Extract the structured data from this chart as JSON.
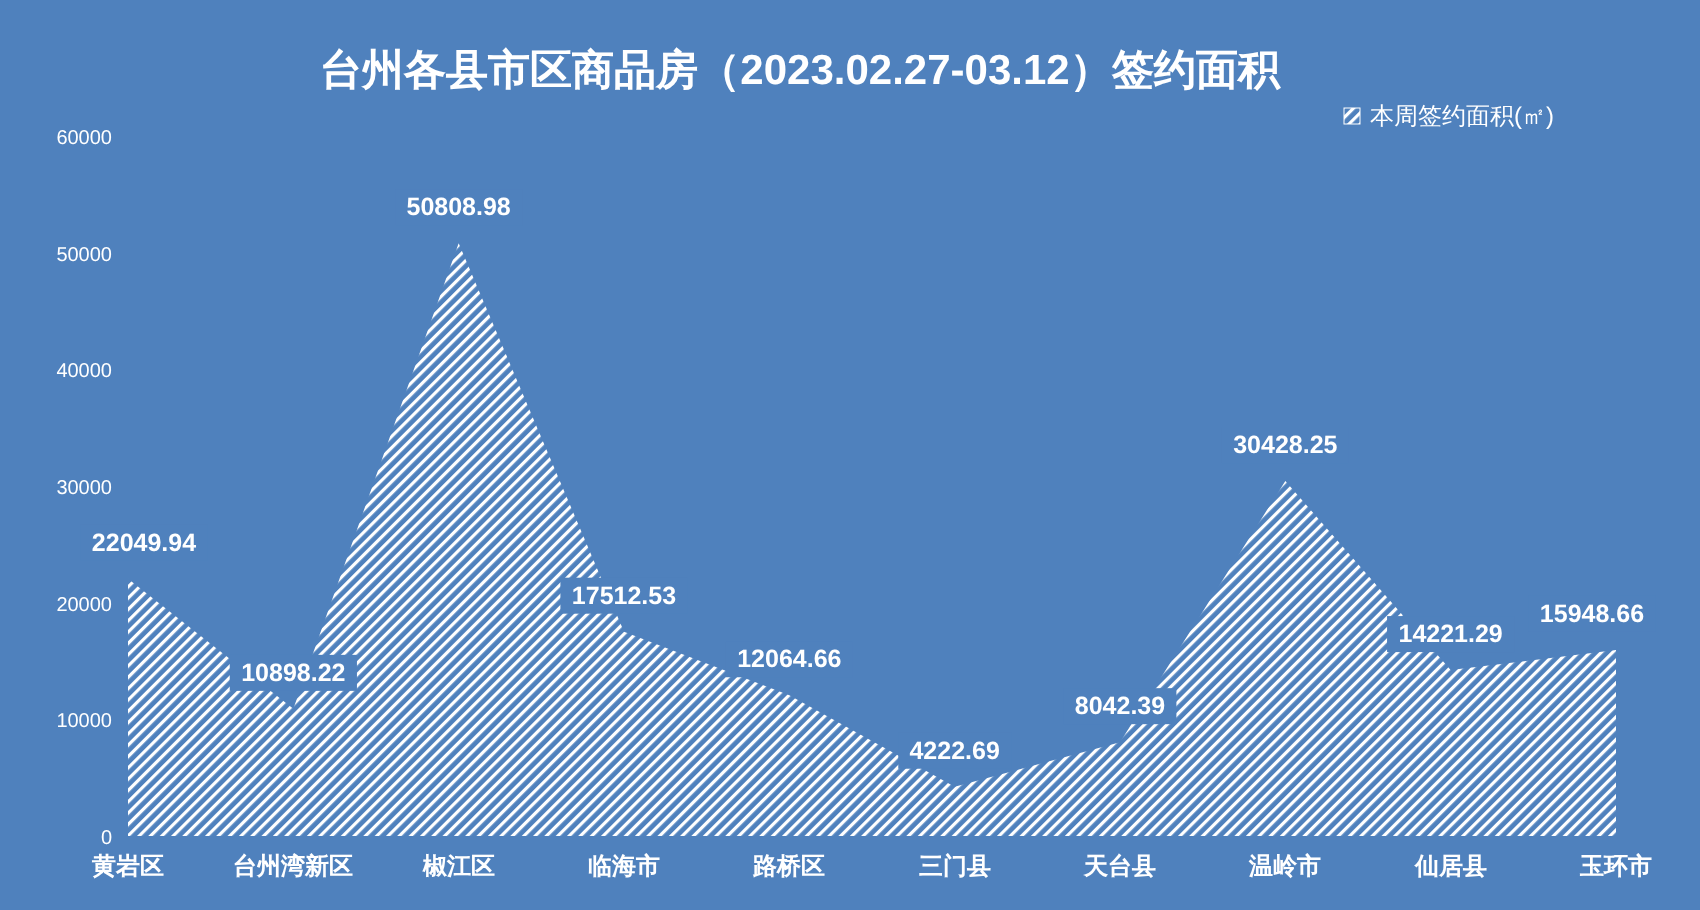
{
  "chart_data": {
    "type": "area",
    "title": "台州各县市区商品房（2023.02.27-03.12）签约面积",
    "categories": [
      "黄岩区",
      "台州湾新区",
      "椒江区",
      "临海市",
      "路桥区",
      "三门县",
      "天台县",
      "温岭市",
      "仙居县",
      "玉环市"
    ],
    "series": [
      {
        "name": "本周签约面积(㎡)",
        "color": "#ffffff",
        "values": [
          22049.94,
          10898.22,
          50808.98,
          17512.53,
          12064.66,
          4222.69,
          8042.39,
          30428.25,
          14221.29,
          15948.66
        ]
      }
    ],
    "ylim": [
      0,
      60000
    ],
    "yticks": [
      0,
      10000,
      20000,
      30000,
      40000,
      50000,
      60000
    ],
    "data_labels": true,
    "legend": "top right",
    "grid": false
  }
}
